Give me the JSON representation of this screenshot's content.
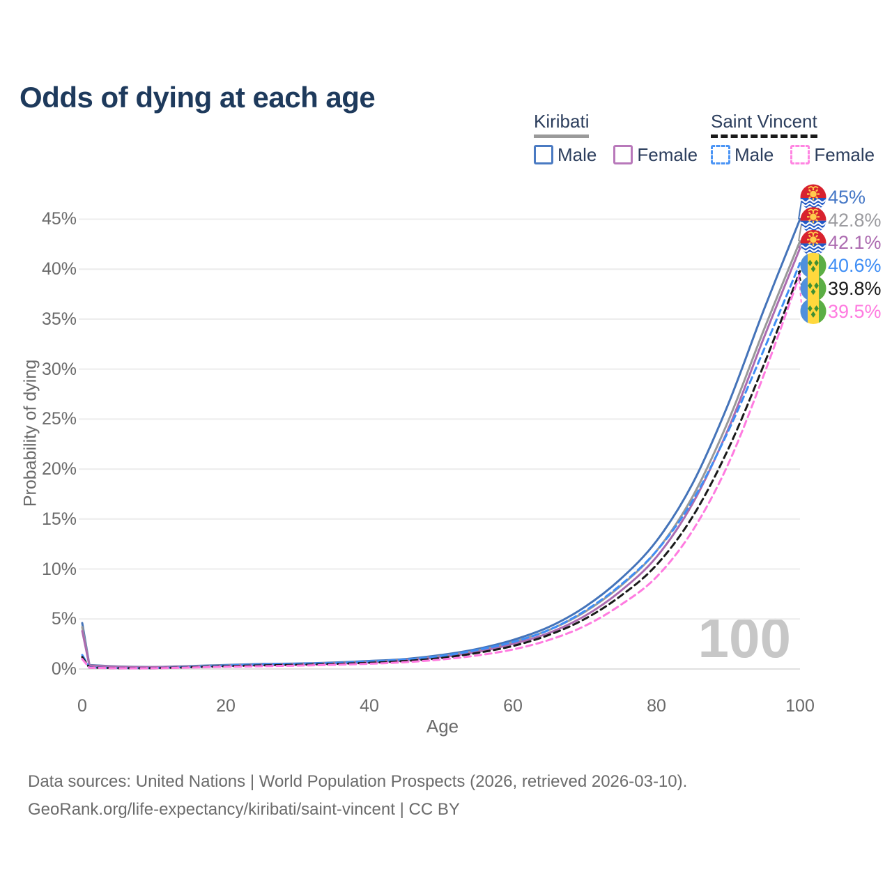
{
  "title": "Odds of dying at each age",
  "legend": {
    "groups": [
      {
        "name": "Kiribati",
        "line_style": "solid",
        "line_color": "#9a9a9a",
        "items": [
          {
            "label": "Male",
            "color": "#4a7ac2",
            "dashed": false
          },
          {
            "label": "Female",
            "color": "#b878ba",
            "dashed": false
          }
        ]
      },
      {
        "name": "Saint Vincent",
        "line_style": "dashed",
        "line_color": "#1a1a1a",
        "items": [
          {
            "label": "Male",
            "color": "#4a94f5",
            "dashed": true
          },
          {
            "label": "Female",
            "color": "#ff85e2",
            "dashed": true
          }
        ]
      }
    ]
  },
  "axes": {
    "y_label": "Probability of dying",
    "y_ticks": [
      "45%",
      "40%",
      "35%",
      "30%",
      "25%",
      "20%",
      "15%",
      "10%",
      "5%",
      "0%"
    ],
    "x_label": "Age",
    "x_ticks": [
      "0",
      "20",
      "40",
      "60",
      "80",
      "100"
    ]
  },
  "watermark": "100",
  "footer": {
    "line1": "Data sources: United Nations | World Population Prospects (2026, retrieved 2026-03-10).",
    "line2": "GeoRank.org/life-expectancy/kiribati/saint-vincent | CC BY"
  },
  "chart_data": {
    "type": "line",
    "title": "Odds of dying at each age",
    "xlabel": "Age",
    "ylabel": "Probability of dying",
    "xlim": [
      0,
      100
    ],
    "ylim": [
      0,
      47
    ],
    "grid": "horizontal",
    "legend_position": "top-right",
    "x": [
      0,
      1,
      5,
      10,
      15,
      20,
      25,
      30,
      35,
      40,
      45,
      50,
      55,
      60,
      65,
      70,
      75,
      80,
      85,
      90,
      95,
      100
    ],
    "series": [
      {
        "name": "Kiribati Male",
        "color": "#4473b9",
        "dash": false,
        "flag": "kiribati",
        "end_label": "45%",
        "end_label_color": "#4577c6",
        "values": [
          4.6,
          0.4,
          0.25,
          0.2,
          0.3,
          0.4,
          0.5,
          0.55,
          0.65,
          0.8,
          1.0,
          1.4,
          2.0,
          2.9,
          4.2,
          6.2,
          9.0,
          12.8,
          18.5,
          26.5,
          36.0,
          45.0
        ]
      },
      {
        "name": "Kiribati Both sexes",
        "color": "#999999",
        "dash": false,
        "flag": "kiribati",
        "end_label": "42.8%",
        "end_label_color": "#9b9b9f",
        "values": [
          4.2,
          0.37,
          0.23,
          0.19,
          0.27,
          0.36,
          0.44,
          0.5,
          0.6,
          0.73,
          0.93,
          1.3,
          1.85,
          2.7,
          3.9,
          5.7,
          8.3,
          11.8,
          17.2,
          24.8,
          34.0,
          42.8
        ]
      },
      {
        "name": "Kiribati Female",
        "color": "#ac6bb0",
        "dash": false,
        "flag": "kiribati",
        "end_label": "42.1%",
        "end_label_color": "#ac6bb0",
        "values": [
          3.8,
          0.34,
          0.21,
          0.18,
          0.24,
          0.32,
          0.4,
          0.46,
          0.55,
          0.67,
          0.87,
          1.2,
          1.7,
          2.5,
          3.6,
          5.3,
          7.8,
          11.2,
          16.5,
          24.0,
          33.2,
          42.1
        ]
      },
      {
        "name": "Saint Vincent Male",
        "color": "#3f8ef5",
        "dash": true,
        "flag": "saint-vincent",
        "end_label": "40.6%",
        "end_label_color": "#3f8ef5",
        "values": [
          1.4,
          0.15,
          0.1,
          0.1,
          0.2,
          0.35,
          0.45,
          0.52,
          0.6,
          0.75,
          0.95,
          1.3,
          1.9,
          2.7,
          3.9,
          5.8,
          8.4,
          11.8,
          16.8,
          23.8,
          32.0,
          40.6
        ]
      },
      {
        "name": "Saint Vincent Both sexes",
        "color": "#1a1a1a",
        "dash": true,
        "flag": "saint-vincent",
        "end_label": "39.8%",
        "end_label_color": "#1a1a1a",
        "values": [
          1.2,
          0.13,
          0.09,
          0.09,
          0.17,
          0.28,
          0.36,
          0.42,
          0.5,
          0.62,
          0.8,
          1.1,
          1.6,
          2.3,
          3.4,
          5.0,
          7.3,
          10.4,
          15.2,
          22.0,
          30.5,
          39.8
        ]
      },
      {
        "name": "Saint Vincent Female",
        "color": "#ff7be0",
        "dash": true,
        "flag": "saint-vincent",
        "end_label": "39.5%",
        "end_label_color": "#ff7be0",
        "values": [
          1.0,
          0.12,
          0.08,
          0.08,
          0.14,
          0.22,
          0.28,
          0.34,
          0.42,
          0.52,
          0.68,
          0.95,
          1.35,
          1.95,
          2.9,
          4.3,
          6.4,
          9.2,
          13.8,
          20.5,
          29.5,
          39.5
        ]
      }
    ]
  }
}
